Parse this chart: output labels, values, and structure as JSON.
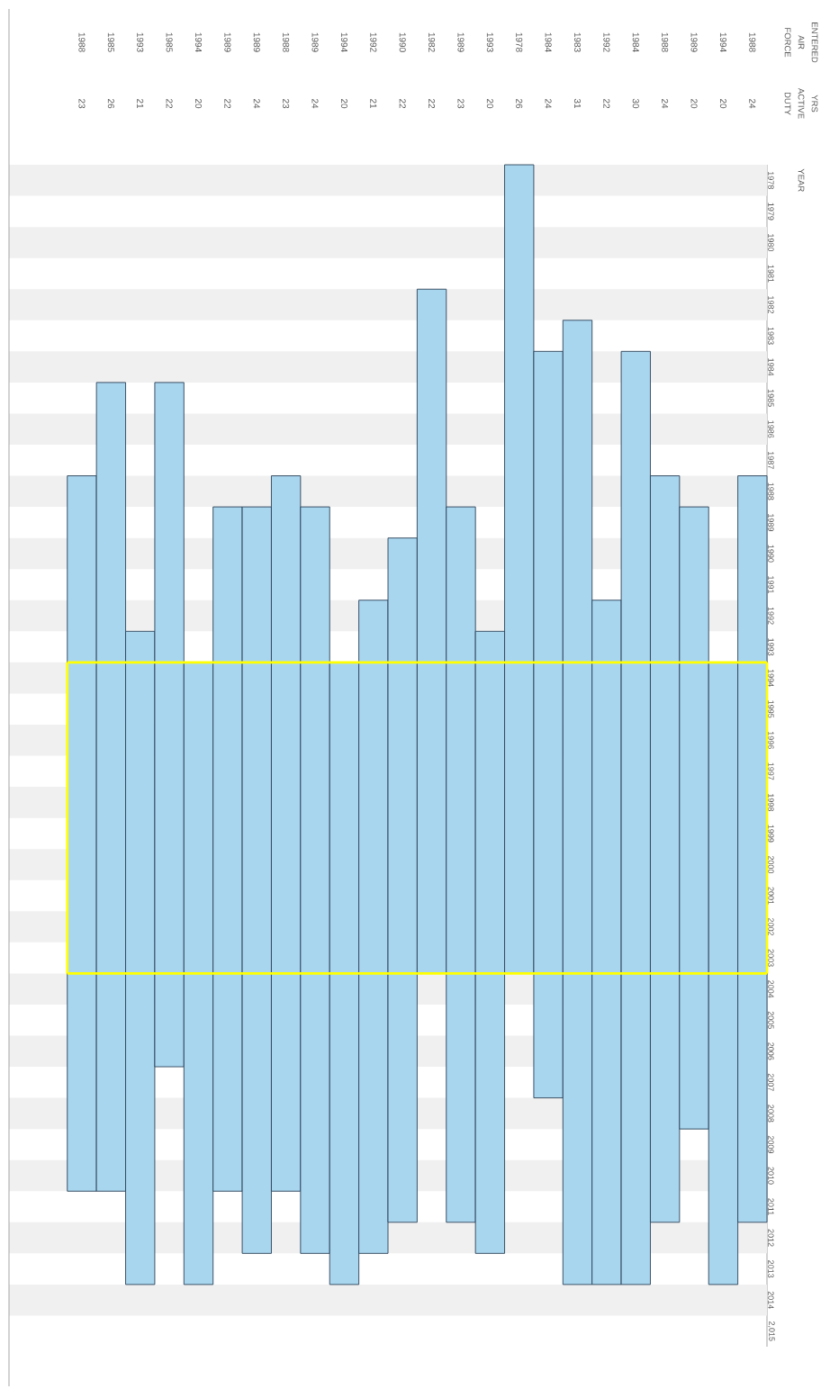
{
  "chart_data": {
    "type": "bar",
    "ylabel": "YEAR",
    "annotations": [
      "ENTERED AIR FORCE",
      "YRS ACTIVE DUTY"
    ],
    "categories": [
      "1988",
      "1985",
      "1993",
      "1985",
      "1994",
      "1989",
      "1989",
      "1988",
      "1989",
      "1994",
      "1992",
      "1990",
      "1982",
      "1989",
      "1993",
      "1978",
      "1984",
      "1983",
      "1992",
      "1984",
      "1988",
      "1989",
      "1994",
      "1988"
    ],
    "base": [
      1988,
      1985,
      1993,
      1985,
      1994,
      1989,
      1989,
      1988,
      1989,
      1994,
      1992,
      1990,
      1982,
      1989,
      1993,
      1978,
      1984,
      1983,
      1992,
      1984,
      1988,
      1989,
      1994,
      1988
    ],
    "values": [
      23,
      26,
      21,
      22,
      20,
      22,
      24,
      23,
      24,
      20,
      21,
      22,
      22,
      23,
      20,
      26,
      24,
      31,
      22,
      30,
      24,
      20,
      20,
      24
    ],
    "value_labels": [
      "23",
      "26",
      "21",
      "22",
      "20",
      "22",
      "24",
      "23",
      "24",
      "20",
      "21",
      "22",
      "22",
      "23",
      "20",
      "26",
      "24",
      "31",
      "22",
      "30",
      "24",
      "20",
      "20",
      "24"
    ],
    "color": "#a9d6ef",
    "ylim": [
      2016,
      1978
    ],
    "yticks": [
      {
        "value": 1978.5,
        "label": "1978"
      },
      {
        "value": 1979.5,
        "label": "1979"
      },
      {
        "value": 1980.5,
        "label": "1980"
      },
      {
        "value": 1981.5,
        "label": "1981"
      },
      {
        "value": 1982.5,
        "label": "1982"
      },
      {
        "value": 1983.5,
        "label": "1983"
      },
      {
        "value": 1984.5,
        "label": "1984"
      },
      {
        "value": 1985.5,
        "label": "1985"
      },
      {
        "value": 1986.5,
        "label": "1986"
      },
      {
        "value": 1987.5,
        "label": "1987"
      },
      {
        "value": 1988.5,
        "label": "1988"
      },
      {
        "value": 1989.5,
        "label": "1989"
      },
      {
        "value": 1990.5,
        "label": "1990"
      },
      {
        "value": 1991.5,
        "label": "1991"
      },
      {
        "value": 1992.5,
        "label": "1992"
      },
      {
        "value": 1993.5,
        "label": "1993"
      },
      {
        "value": 1994.5,
        "label": "1994"
      },
      {
        "value": 1995.5,
        "label": "1995"
      },
      {
        "value": 1996.5,
        "label": "1996"
      },
      {
        "value": 1997.5,
        "label": "1997"
      },
      {
        "value": 1998.5,
        "label": "1998"
      },
      {
        "value": 1999.5,
        "label": "1999"
      },
      {
        "value": 2000.5,
        "label": "2000"
      },
      {
        "value": 2001.5,
        "label": "2001"
      },
      {
        "value": 2002.5,
        "label": "2002"
      },
      {
        "value": 2003.5,
        "label": "2003"
      },
      {
        "value": 2004.5,
        "label": "2004"
      },
      {
        "value": 2005.5,
        "label": "2005"
      },
      {
        "value": 2006.5,
        "label": "2006"
      },
      {
        "value": 2007.5,
        "label": "2007"
      },
      {
        "value": 2008.5,
        "label": "2008"
      },
      {
        "value": 2009.5,
        "label": "2009"
      },
      {
        "value": 2010.5,
        "label": "2010"
      },
      {
        "value": 2011.5,
        "label": "2011"
      },
      {
        "value": 2012.5,
        "label": "2012"
      },
      {
        "value": 2013.5,
        "label": "2013"
      },
      {
        "value": 2014.5,
        "label": "2014"
      },
      {
        "value": 2015.5,
        "label": "2,015"
      }
    ],
    "bands": [
      {
        "axis": "y",
        "from": 1978,
        "to": 1979,
        "color": "#f0f0f0"
      },
      {
        "axis": "y",
        "from": 1980,
        "to": 1981,
        "color": "#f0f0f0"
      },
      {
        "axis": "y",
        "from": 1982,
        "to": 1983,
        "color": "#f0f0f0"
      },
      {
        "axis": "y",
        "from": 1984,
        "to": 1985,
        "color": "#f0f0f0"
      },
      {
        "axis": "y",
        "from": 1986,
        "to": 1987,
        "color": "#f0f0f0"
      },
      {
        "axis": "y",
        "from": 1988,
        "to": 1989,
        "color": "#f0f0f0"
      },
      {
        "axis": "y",
        "from": 1990,
        "to": 1991,
        "color": "#f0f0f0"
      },
      {
        "axis": "y",
        "from": 1992,
        "to": 1993,
        "color": "#f0f0f0"
      },
      {
        "axis": "y",
        "from": 1994,
        "to": 1995,
        "color": "#f0f0f0"
      },
      {
        "axis": "y",
        "from": 1996,
        "to": 1997,
        "color": "#f0f0f0"
      },
      {
        "axis": "y",
        "from": 1998,
        "to": 1999,
        "color": "#f0f0f0"
      },
      {
        "axis": "y",
        "from": 2000,
        "to": 2001,
        "color": "#f0f0f0"
      },
      {
        "axis": "y",
        "from": 2002,
        "to": 2003,
        "color": "#f0f0f0"
      },
      {
        "axis": "y",
        "from": 2004,
        "to": 2005,
        "color": "#f0f0f0"
      },
      {
        "axis": "y",
        "from": 2006,
        "to": 2007,
        "color": "#f0f0f0"
      },
      {
        "axis": "y",
        "from": 2008,
        "to": 2009,
        "color": "#f0f0f0"
      },
      {
        "axis": "y",
        "from": 2010,
        "to": 2011,
        "color": "#f0f0f0"
      },
      {
        "axis": "y",
        "from": 2012,
        "to": 2013,
        "color": "#f0f0f0"
      },
      {
        "axis": "y",
        "from": 2014,
        "to": 2015,
        "color": "#f0f0f0"
      }
    ],
    "ref_lines": [
      {
        "axis": "y",
        "value": 1994,
        "color": "#ffff00"
      },
      {
        "axis": "y",
        "value": 2004,
        "color": "#ffff00"
      }
    ]
  }
}
